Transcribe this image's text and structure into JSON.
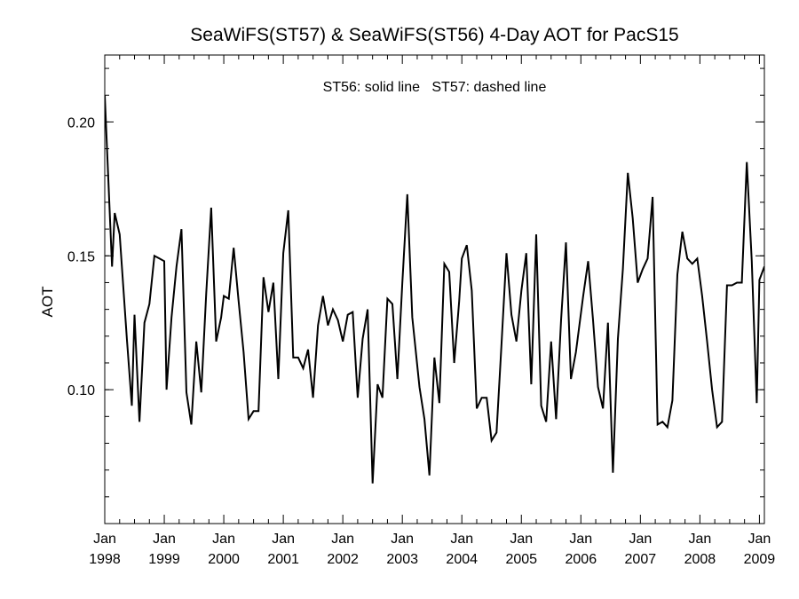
{
  "chart_data": {
    "type": "line",
    "title": "SeaWiFS(ST57) & SeaWiFS(ST56) 4-Day AOT for PacS15",
    "annotation": "ST56: solid line   ST57: dashed line",
    "xlabel": "",
    "ylabel": "AOT",
    "ylim": [
      0.05,
      0.225
    ],
    "xlim": [
      "1998-01",
      "2009-02"
    ],
    "yticks": [
      "0.10",
      "0.15",
      "0.20"
    ],
    "xticks": [
      {
        "month": "Jan",
        "year": "1998"
      },
      {
        "month": "Jan",
        "year": "1999"
      },
      {
        "month": "Jan",
        "year": "2000"
      },
      {
        "month": "Jan",
        "year": "2001"
      },
      {
        "month": "Jan",
        "year": "2002"
      },
      {
        "month": "Jan",
        "year": "2003"
      },
      {
        "month": "Jan",
        "year": "2004"
      },
      {
        "month": "Jan",
        "year": "2005"
      },
      {
        "month": "Jan",
        "year": "2006"
      },
      {
        "month": "Jan",
        "year": "2007"
      },
      {
        "month": "Jan",
        "year": "2008"
      },
      {
        "month": "Jan",
        "year": "2009"
      }
    ],
    "grid": false,
    "colors": {
      "line": "#000000",
      "axis": "#000000"
    },
    "series": [
      {
        "style": "solid",
        "points": [
          [
            "1998-01-01",
            0.21
          ],
          [
            "1998-02-15",
            0.146
          ],
          [
            "1998-03-01",
            0.166
          ],
          [
            "1998-04-01",
            0.158
          ],
          [
            "1998-05-15",
            0.119
          ],
          [
            "1998-06-15",
            0.094
          ],
          [
            "1998-07-01",
            0.128
          ],
          [
            "1998-08-01",
            0.088
          ],
          [
            "1998-09-01",
            0.125
          ],
          [
            "1998-10-01",
            0.132
          ],
          [
            "1998-11-01",
            0.15
          ],
          [
            "1998-12-01",
            0.149
          ],
          [
            "1999-01-01",
            0.148
          ],
          [
            "1999-01-15",
            0.1
          ],
          [
            "1999-02-15",
            0.127
          ],
          [
            "1999-03-15",
            0.146
          ],
          [
            "1999-04-15",
            0.16
          ],
          [
            "1999-05-15",
            0.099
          ],
          [
            "1999-06-15",
            0.087
          ],
          [
            "1999-07-15",
            0.118
          ],
          [
            "1999-08-15",
            0.099
          ],
          [
            "1999-09-15",
            0.136
          ],
          [
            "1999-10-15",
            0.168
          ],
          [
            "1999-11-15",
            0.118
          ],
          [
            "1999-12-15",
            0.127
          ],
          [
            "2000-01-01",
            0.135
          ],
          [
            "2000-02-01",
            0.134
          ],
          [
            "2000-03-01",
            0.153
          ],
          [
            "2000-04-01",
            0.133
          ],
          [
            "2000-05-01",
            0.114
          ],
          [
            "2000-06-01",
            0.089
          ],
          [
            "2000-07-01",
            0.092
          ],
          [
            "2000-08-01",
            0.092
          ],
          [
            "2000-09-01",
            0.142
          ],
          [
            "2000-10-01",
            0.129
          ],
          [
            "2000-11-01",
            0.14
          ],
          [
            "2000-12-01",
            0.104
          ],
          [
            "2001-01-01",
            0.151
          ],
          [
            "2001-02-01",
            0.167
          ],
          [
            "2001-03-01",
            0.112
          ],
          [
            "2001-04-01",
            0.112
          ],
          [
            "2001-05-01",
            0.108
          ],
          [
            "2001-06-01",
            0.115
          ],
          [
            "2001-07-01",
            0.097
          ],
          [
            "2001-08-01",
            0.124
          ],
          [
            "2001-09-01",
            0.135
          ],
          [
            "2001-10-01",
            0.124
          ],
          [
            "2001-11-01",
            0.13
          ],
          [
            "2001-12-01",
            0.126
          ],
          [
            "2002-01-01",
            0.118
          ],
          [
            "2002-02-01",
            0.128
          ],
          [
            "2002-03-01",
            0.129
          ],
          [
            "2002-04-01",
            0.097
          ],
          [
            "2002-05-01",
            0.119
          ],
          [
            "2002-06-01",
            0.13
          ],
          [
            "2002-07-01",
            0.065
          ],
          [
            "2002-08-01",
            0.102
          ],
          [
            "2002-09-01",
            0.097
          ],
          [
            "2002-10-01",
            0.134
          ],
          [
            "2002-11-01",
            0.132
          ],
          [
            "2002-12-01",
            0.104
          ],
          [
            "2003-01-01",
            0.14
          ],
          [
            "2003-02-01",
            0.173
          ],
          [
            "2003-03-01",
            0.127
          ],
          [
            "2003-04-15",
            0.101
          ],
          [
            "2003-05-15",
            0.089
          ],
          [
            "2003-06-15",
            0.068
          ],
          [
            "2003-07-15",
            0.112
          ],
          [
            "2003-08-15",
            0.095
          ],
          [
            "2003-09-15",
            0.147
          ],
          [
            "2003-10-15",
            0.144
          ],
          [
            "2003-11-15",
            0.11
          ],
          [
            "2003-12-15",
            0.133
          ],
          [
            "2004-01-01",
            0.149
          ],
          [
            "2004-02-01",
            0.154
          ],
          [
            "2004-03-01",
            0.137
          ],
          [
            "2004-04-01",
            0.093
          ],
          [
            "2004-05-01",
            0.097
          ],
          [
            "2004-06-01",
            0.097
          ],
          [
            "2004-07-01",
            0.081
          ],
          [
            "2004-08-01",
            0.084
          ],
          [
            "2004-09-01",
            0.117
          ],
          [
            "2004-10-01",
            0.151
          ],
          [
            "2004-11-01",
            0.128
          ],
          [
            "2004-12-01",
            0.118
          ],
          [
            "2005-01-01",
            0.137
          ],
          [
            "2005-02-01",
            0.151
          ],
          [
            "2005-03-01",
            0.102
          ],
          [
            "2005-04-01",
            0.158
          ],
          [
            "2005-05-01",
            0.094
          ],
          [
            "2005-06-01",
            0.088
          ],
          [
            "2005-07-01",
            0.118
          ],
          [
            "2005-08-01",
            0.089
          ],
          [
            "2005-09-01",
            0.126
          ],
          [
            "2005-10-01",
            0.155
          ],
          [
            "2005-11-01",
            0.104
          ],
          [
            "2005-12-01",
            0.114
          ],
          [
            "2006-01-15",
            0.135
          ],
          [
            "2006-02-15",
            0.148
          ],
          [
            "2006-03-15",
            0.126
          ],
          [
            "2006-04-15",
            0.101
          ],
          [
            "2006-05-15",
            0.093
          ],
          [
            "2006-06-15",
            0.125
          ],
          [
            "2006-07-15",
            0.069
          ],
          [
            "2006-08-15",
            0.119
          ],
          [
            "2006-09-15",
            0.145
          ],
          [
            "2006-10-15",
            0.181
          ],
          [
            "2006-11-15",
            0.164
          ],
          [
            "2006-12-15",
            0.14
          ],
          [
            "2007-01-15",
            0.145
          ],
          [
            "2007-02-15",
            0.149
          ],
          [
            "2007-03-15",
            0.172
          ],
          [
            "2007-04-15",
            0.087
          ],
          [
            "2007-05-15",
            0.088
          ],
          [
            "2007-06-15",
            0.086
          ],
          [
            "2007-07-15",
            0.096
          ],
          [
            "2007-08-15",
            0.143
          ],
          [
            "2007-09-15",
            0.159
          ],
          [
            "2007-10-15",
            0.149
          ],
          [
            "2007-11-15",
            0.147
          ],
          [
            "2007-12-15",
            0.149
          ],
          [
            "2008-01-15",
            0.135
          ],
          [
            "2008-02-15",
            0.118
          ],
          [
            "2008-03-15",
            0.1
          ],
          [
            "2008-04-15",
            0.086
          ],
          [
            "2008-05-15",
            0.088
          ],
          [
            "2008-06-15",
            0.139
          ],
          [
            "2008-07-15",
            0.139
          ],
          [
            "2008-08-15",
            0.14
          ],
          [
            "2008-09-15",
            0.14
          ],
          [
            "2008-10-15",
            0.185
          ],
          [
            "2008-11-15",
            0.148
          ],
          [
            "2008-12-15",
            0.095
          ],
          [
            "2009-01-01",
            0.141
          ],
          [
            "2009-02-01",
            0.146
          ]
        ]
      }
    ]
  }
}
